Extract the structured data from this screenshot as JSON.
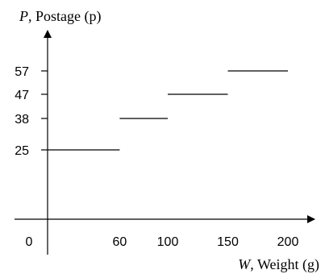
{
  "chart_data": {
    "type": "line",
    "step": true,
    "title": "",
    "ylabel": {
      "var": "P",
      "text": ", Postage (p)"
    },
    "xlabel": {
      "var": "W",
      "text": ", Weight (g)"
    },
    "xlim": [
      0,
      200
    ],
    "ylim": [
      0,
      57
    ],
    "origin_label": "0",
    "x_ticks": [
      60,
      100,
      150,
      200
    ],
    "x_tick_labels": [
      "60",
      "100",
      "150",
      "200"
    ],
    "y_ticks": [
      25,
      38,
      47,
      57
    ],
    "y_tick_labels": [
      "25",
      "38",
      "47",
      "57"
    ],
    "grid": false,
    "segments": [
      {
        "x_start": 0,
        "x_end": 60,
        "y": 25
      },
      {
        "x_start": 60,
        "x_end": 100,
        "y": 38
      },
      {
        "x_start": 100,
        "x_end": 150,
        "y": 47
      },
      {
        "x_start": 150,
        "x_end": 200,
        "y": 57
      }
    ]
  }
}
